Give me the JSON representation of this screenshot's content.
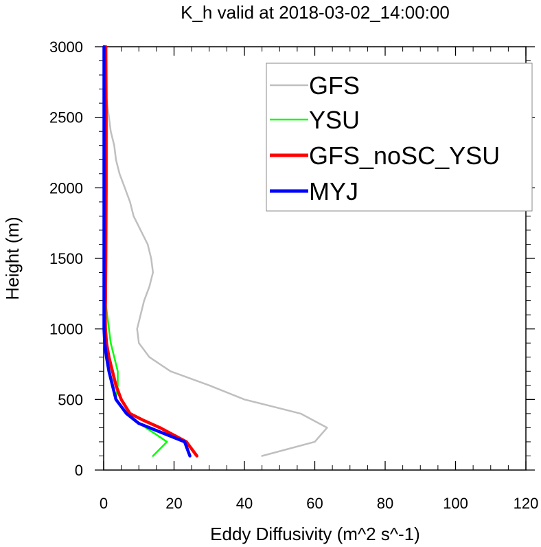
{
  "chart_data": {
    "type": "line",
    "title": "K_h valid at 2018-03-02_14:00:00",
    "xlabel": "Eddy Diffusivity (m^2 s^-1)",
    "ylabel": "Height (m)",
    "xlim": [
      0,
      120
    ],
    "ylim": [
      0,
      3000
    ],
    "xticks": [
      0,
      20,
      40,
      60,
      80,
      100,
      120
    ],
    "yticks": [
      0,
      500,
      1000,
      1500,
      2000,
      2500,
      3000
    ],
    "grid": false,
    "legend_position": "top-right",
    "series": [
      {
        "name": "GFS",
        "color": "#bfbfbf",
        "points": [
          [
            45,
            100
          ],
          [
            60,
            200
          ],
          [
            63.5,
            300
          ],
          [
            56,
            400
          ],
          [
            48,
            450
          ],
          [
            40,
            500
          ],
          [
            30,
            600
          ],
          [
            19,
            700
          ],
          [
            13,
            800
          ],
          [
            10,
            900
          ],
          [
            9.5,
            1000
          ],
          [
            10.5,
            1100
          ],
          [
            11.5,
            1200
          ],
          [
            13,
            1300
          ],
          [
            14,
            1400
          ],
          [
            13.5,
            1500
          ],
          [
            12.5,
            1600
          ],
          [
            10.5,
            1700
          ],
          [
            8.5,
            1800
          ],
          [
            7.5,
            1900
          ],
          [
            6,
            2000
          ],
          [
            4.5,
            2100
          ],
          [
            3.5,
            2200
          ],
          [
            3,
            2300
          ],
          [
            2,
            2400
          ],
          [
            1.5,
            2500
          ],
          [
            1,
            2600
          ],
          [
            0.5,
            2700
          ],
          [
            0.3,
            2800
          ],
          [
            0.2,
            2900
          ],
          [
            0.2,
            3000
          ]
        ]
      },
      {
        "name": "YSU",
        "color": "#00ff00",
        "points": [
          [
            14,
            100
          ],
          [
            18,
            200
          ],
          [
            12,
            300
          ],
          [
            6.5,
            400
          ],
          [
            3.5,
            500
          ],
          [
            4,
            600
          ],
          [
            4,
            700
          ],
          [
            3,
            800
          ],
          [
            2,
            900
          ],
          [
            1.5,
            1000
          ],
          [
            1,
            1100
          ],
          [
            0.5,
            1200
          ],
          [
            0.4,
            1300
          ],
          [
            0.3,
            1500
          ],
          [
            0.2,
            2000
          ],
          [
            0.2,
            2500
          ],
          [
            0.2,
            3000
          ]
        ]
      },
      {
        "name": "GFS_noSC_YSU",
        "color": "#ff0000",
        "points": [
          [
            26.5,
            100
          ],
          [
            23.5,
            200
          ],
          [
            16,
            300
          ],
          [
            11.5,
            350
          ],
          [
            7.5,
            400
          ],
          [
            5,
            500
          ],
          [
            3.5,
            600
          ],
          [
            2.5,
            700
          ],
          [
            1.5,
            800
          ],
          [
            0.8,
            900
          ],
          [
            0.5,
            1000
          ],
          [
            0.4,
            1100
          ],
          [
            0.5,
            1200
          ],
          [
            0.6,
            1500
          ],
          [
            0.7,
            2000
          ],
          [
            0.7,
            2500
          ],
          [
            0.6,
            3000
          ]
        ]
      },
      {
        "name": "MYJ",
        "color": "#0000ff",
        "points": [
          [
            24.5,
            100
          ],
          [
            23,
            200
          ],
          [
            15,
            280
          ],
          [
            10,
            330
          ],
          [
            6.5,
            400
          ],
          [
            3.5,
            500
          ],
          [
            2.5,
            600
          ],
          [
            1.5,
            700
          ],
          [
            0.8,
            800
          ],
          [
            0.3,
            900
          ],
          [
            0.1,
            1000
          ],
          [
            0.1,
            1500
          ],
          [
            0.1,
            2000
          ],
          [
            0.1,
            2500
          ],
          [
            0.1,
            3000
          ]
        ]
      }
    ]
  }
}
